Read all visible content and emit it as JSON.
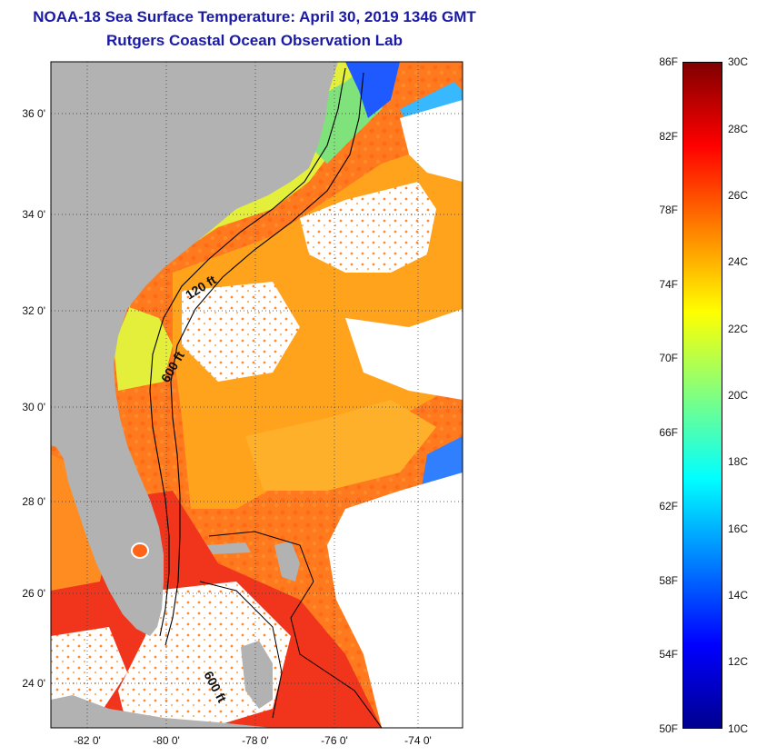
{
  "title": {
    "line1": "NOAA-18 Sea Surface Temperature:  April 30, 2019 1346 GMT",
    "line2": "Rutgers Coastal Ocean Observation Lab"
  },
  "map": {
    "lat_labels": [
      "36 0'",
      "34 0'",
      "32 0'",
      "30 0'",
      "28 0'",
      "26 0'",
      "24 0'"
    ],
    "lon_labels": [
      "-82 0'",
      "-80 0'",
      "-78 0'",
      "-76 0'",
      "-74 0'"
    ],
    "contours": [
      "120 ft",
      "600 ft",
      "600 ft"
    ],
    "colors": {
      "land": "#b2b2b2",
      "cloud": "#ffffff",
      "frame": "#000000"
    }
  },
  "colorbar": {
    "f_labels": [
      "86F",
      "82F",
      "78F",
      "74F",
      "70F",
      "66F",
      "62F",
      "58F",
      "54F",
      "50F"
    ],
    "c_labels": [
      "30C",
      "28C",
      "26C",
      "24C",
      "22C",
      "20C",
      "18C",
      "16C",
      "14C",
      "12C",
      "10C"
    ],
    "colors": [
      "#00008f",
      "#0000ff",
      "#0080ff",
      "#00ffff",
      "#80ff80",
      "#ffff00",
      "#ff8000",
      "#ff0000",
      "#800000"
    ]
  }
}
